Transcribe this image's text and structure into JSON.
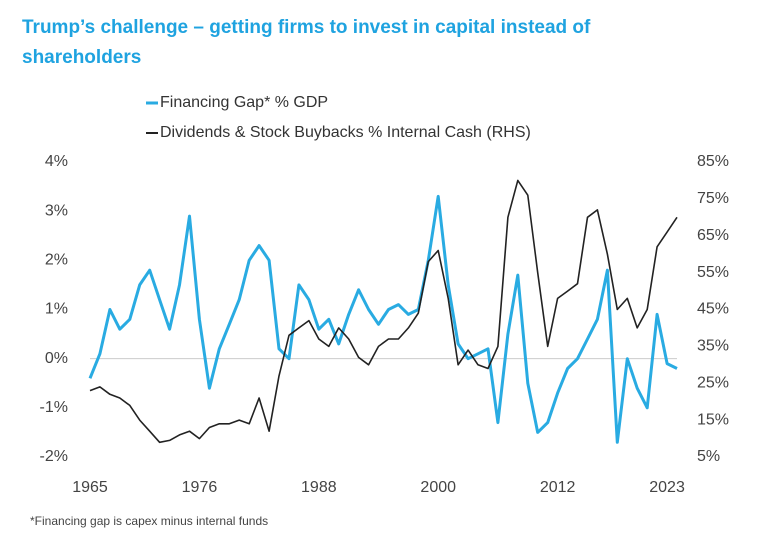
{
  "chart_data": {
    "type": "line",
    "title": "Trump’s challenge – getting firms to invest in capital instead of shareholders",
    "footnote": "*Financing gap is capex minus internal funds",
    "x": [
      1965,
      1966,
      1967,
      1968,
      1969,
      1970,
      1971,
      1972,
      1973,
      1974,
      1975,
      1976,
      1977,
      1978,
      1979,
      1980,
      1981,
      1982,
      1983,
      1984,
      1985,
      1986,
      1987,
      1988,
      1989,
      1990,
      1991,
      1992,
      1993,
      1994,
      1995,
      1996,
      1997,
      1998,
      1999,
      2000,
      2001,
      2002,
      2003,
      2004,
      2005,
      2006,
      2007,
      2008,
      2009,
      2010,
      2011,
      2012,
      2013,
      2014,
      2015,
      2016,
      2017,
      2018,
      2019,
      2020,
      2021,
      2022,
      2023,
      2024
    ],
    "series": [
      {
        "name": "Financing Gap* % GDP",
        "color": "#29abe2",
        "values": [
          -0.4,
          0.1,
          1.0,
          0.6,
          0.8,
          1.5,
          1.8,
          1.2,
          0.6,
          1.5,
          2.9,
          0.8,
          -0.6,
          0.2,
          0.7,
          1.2,
          2.0,
          2.3,
          2.0,
          0.2,
          0.0,
          1.5,
          1.2,
          0.6,
          0.8,
          0.3,
          0.9,
          1.4,
          1.0,
          0.7,
          1.0,
          1.1,
          0.9,
          1.0,
          2.0,
          3.3,
          1.5,
          0.3,
          0.0,
          0.1,
          0.2,
          -1.3,
          0.5,
          1.7,
          -0.5,
          -1.5,
          -1.3,
          -0.7,
          -0.2,
          0.0,
          0.4,
          0.8,
          1.8,
          -1.7,
          0.0,
          -0.6,
          -1.0,
          0.9,
          -0.1,
          -0.2
        ]
      },
      {
        "name": "Dividends & Stock Buybacks % Internal Cash (RHS)",
        "color": "#222222",
        "axis": "y2",
        "values": [
          23,
          24,
          22,
          21,
          19,
          15,
          12,
          9,
          9.5,
          11,
          12,
          10,
          13,
          14,
          14,
          15,
          14,
          21,
          12,
          27,
          38,
          40,
          42,
          37,
          35,
          40,
          37,
          32,
          30,
          35,
          37,
          37,
          40,
          44,
          58,
          61,
          48,
          30,
          34,
          30,
          29,
          35,
          70,
          80,
          76,
          55,
          35,
          48,
          50,
          52,
          70,
          72,
          60,
          45,
          48,
          40,
          45,
          62,
          66,
          70
        ]
      }
    ],
    "xlim": [
      1965,
      2024
    ],
    "xticks": [
      1965,
      1976,
      1988,
      2000,
      2012,
      2023
    ],
    "ylim": [
      -2,
      4
    ],
    "yticks": [
      {
        "value": -2,
        "label": "-2%"
      },
      {
        "value": -1,
        "label": "-1%"
      },
      {
        "value": 0,
        "label": "0%"
      },
      {
        "value": 1,
        "label": "1%"
      },
      {
        "value": 2,
        "label": "2%"
      },
      {
        "value": 3,
        "label": "3%"
      },
      {
        "value": 4,
        "label": "4%"
      }
    ],
    "y2lim": [
      5,
      85
    ],
    "y2ticks": [
      {
        "value": 5,
        "label": "5%"
      },
      {
        "value": 15,
        "label": "15%"
      },
      {
        "value": 25,
        "label": "25%"
      },
      {
        "value": 35,
        "label": "35%"
      },
      {
        "value": 45,
        "label": "45%"
      },
      {
        "value": 55,
        "label": "55%"
      },
      {
        "value": 65,
        "label": "65%"
      },
      {
        "value": 75,
        "label": "75%"
      },
      {
        "value": 85,
        "label": "85%"
      }
    ]
  }
}
